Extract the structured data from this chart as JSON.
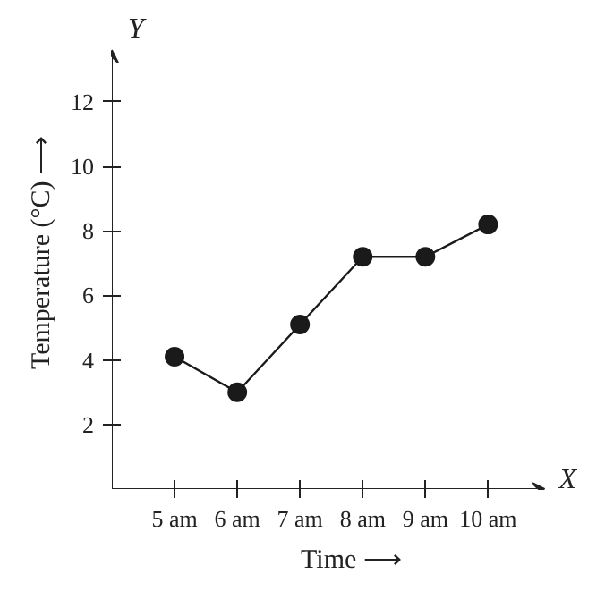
{
  "chart_data": {
    "type": "line",
    "xlabel": "Time ⟶",
    "ylabel": "Temperature (°C) ⟶",
    "annotations": [
      "Y",
      "X"
    ],
    "categories": [
      "5 am",
      "6 am",
      "7 am",
      "8 am",
      "9 am",
      "10 am"
    ],
    "series": [
      {
        "color": "#1a1a1a",
        "values": [
          4.1,
          3,
          5.1,
          7.2,
          7.2,
          8.2
        ]
      }
    ],
    "ylim": [
      0,
      13.6
    ],
    "yticks": [
      2,
      4,
      6,
      8,
      10,
      12
    ],
    "grid": false,
    "marker": "circle",
    "line_style": "solid"
  }
}
